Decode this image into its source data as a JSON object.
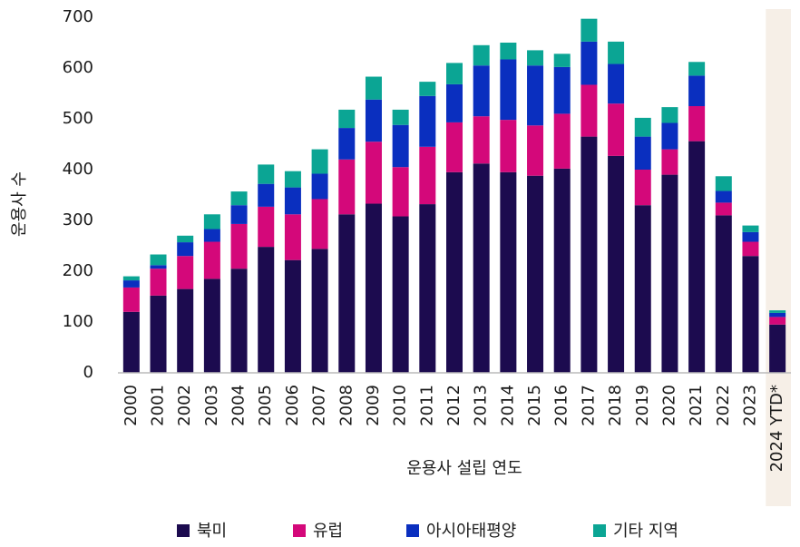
{
  "chart_data": {
    "type": "stacked_bar",
    "y_label": "운용사 수",
    "x_label": "운용사 설립 연도",
    "categories": [
      "2000",
      "2001",
      "2002",
      "2003",
      "2004",
      "2005",
      "2006",
      "2007",
      "2008",
      "2009",
      "2010",
      "2011",
      "2012",
      "2013",
      "2014",
      "2015",
      "2016",
      "2017",
      "2018",
      "2019",
      "2020",
      "2021",
      "2022",
      "2023",
      "2024 YTD*"
    ],
    "series": [
      {
        "name": "북미",
        "color": "#1c0b4f",
        "values": [
          120,
          152,
          165,
          185,
          205,
          248,
          222,
          244,
          312,
          333,
          308,
          332,
          395,
          412,
          395,
          388,
          402,
          465,
          427,
          330,
          390,
          456,
          310,
          230,
          95
        ]
      },
      {
        "name": "유럽",
        "color": "#d4087a",
        "values": [
          48,
          53,
          65,
          73,
          88,
          79,
          90,
          98,
          108,
          122,
          97,
          113,
          98,
          93,
          103,
          99,
          108,
          102,
          103,
          70,
          50,
          69,
          25,
          28,
          15
        ]
      },
      {
        "name": "아시아태평양",
        "color": "#0a2fbf",
        "values": [
          14,
          7,
          27,
          25,
          37,
          45,
          53,
          50,
          62,
          83,
          83,
          100,
          75,
          100,
          119,
          118,
          92,
          85,
          78,
          65,
          52,
          60,
          23,
          19,
          8
        ]
      },
      {
        "name": "기타 지역",
        "color": "#0ba594",
        "values": [
          8,
          21,
          13,
          29,
          27,
          38,
          32,
          48,
          36,
          45,
          30,
          28,
          42,
          40,
          33,
          30,
          26,
          45,
          44,
          37,
          31,
          27,
          29,
          13,
          5
        ]
      }
    ],
    "ylim": [
      0,
      700
    ],
    "yticks": [
      0,
      100,
      200,
      300,
      400,
      500,
      600,
      700
    ],
    "grid": false,
    "legend": "bottom"
  }
}
